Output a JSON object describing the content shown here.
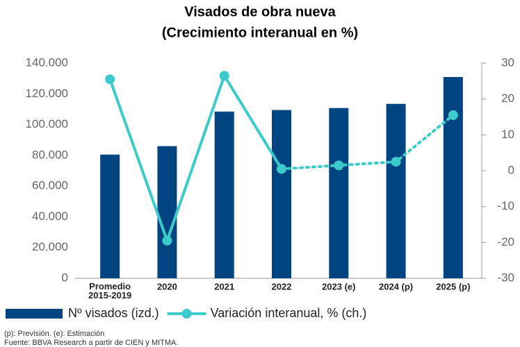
{
  "chart_data": {
    "type": "bar_line",
    "title": "Visados de obra nueva",
    "subtitle": "(Crecimiento interanual en %)",
    "categories": [
      "Promedio\n2015-2019",
      "2020",
      "2021",
      "2022",
      "2023 (e)",
      "2024 (p)",
      "2025 (p)"
    ],
    "series": [
      {
        "name": "Nº visados (izd.)",
        "type": "bar",
        "color": "#004481",
        "axis": "y",
        "values": [
          80500,
          86000,
          108500,
          109500,
          110800,
          113500,
          131000
        ]
      },
      {
        "name": "Variación interanual, % (ch.)",
        "type": "line",
        "color": "#3ccbcb",
        "axis": "y2",
        "dash_from": 3,
        "values": [
          25.5,
          -19.5,
          26.5,
          0.5,
          1.5,
          2.5,
          15.5
        ]
      }
    ],
    "ylim": [
      0,
      140000
    ],
    "yticks": [
      0,
      {
        "value": 20000,
        "label": "20.000"
      },
      {
        "value": 40000,
        "label": "40.000"
      },
      {
        "value": 60000,
        "label": "60.000"
      },
      {
        "value": 80000,
        "label": "80.000"
      },
      {
        "value": 100000,
        "label": "100.000"
      },
      {
        "value": 120000,
        "label": "120.000"
      },
      {
        "value": 140000,
        "label": "140.000"
      }
    ],
    "y2lim": [
      -30,
      30
    ],
    "y2ticks": [
      -30,
      -20,
      -10,
      0,
      10,
      20,
      30
    ],
    "grid": false,
    "legend": "bottom",
    "notes": [
      "(p): Previsión. (e): Estimación",
      "Fuente: BBVA Research a partir de CIEN y MITMA."
    ]
  }
}
